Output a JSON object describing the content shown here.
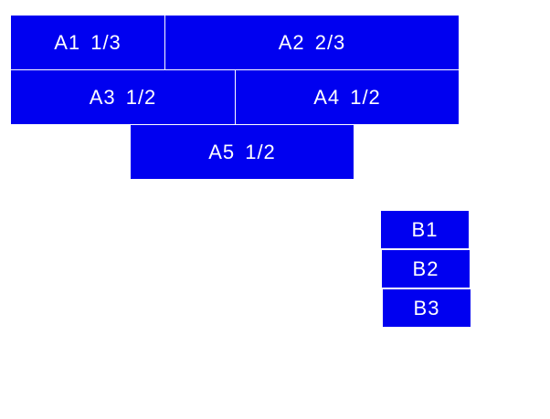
{
  "color": "#0000f0",
  "group_a": [
    {
      "label": "A1 1/3"
    },
    {
      "label": "A2 2/3"
    },
    {
      "label": "A3 1/2"
    },
    {
      "label": "A4 1/2"
    },
    {
      "label": "A5 1/2"
    }
  ],
  "group_b": [
    {
      "label": "B1"
    },
    {
      "label": "B2"
    },
    {
      "label": "B3"
    }
  ]
}
